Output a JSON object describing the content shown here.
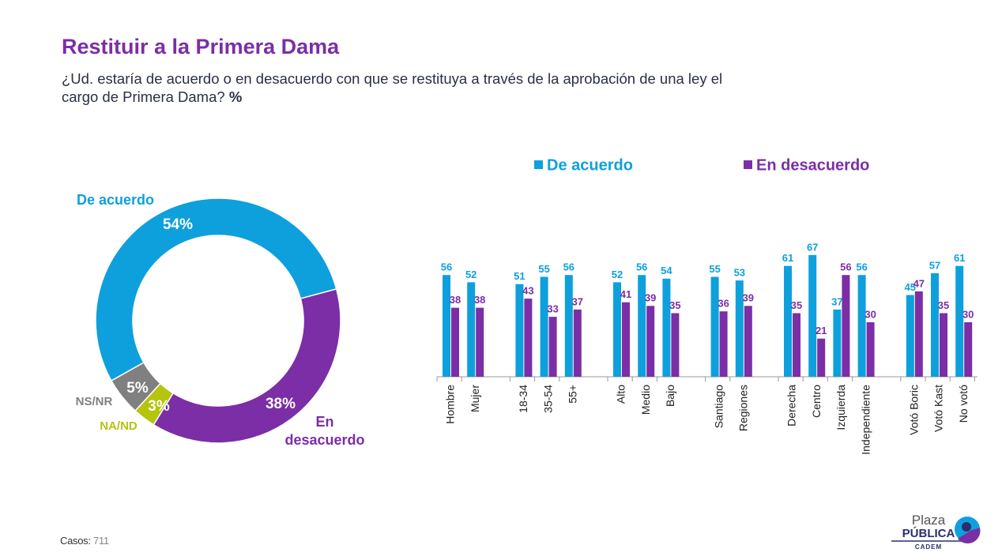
{
  "title": "Restituir a la Primera Dama",
  "subtitle": "¿Ud. estaría de acuerdo o en desacuerdo con que se restituya a través de la aprobación de una ley el cargo de Primera Dama?",
  "subtitle_unit": "%",
  "cases_label": "Casos:",
  "cases": 711,
  "logo": {
    "line1": "Plaza",
    "line2": "PÚBLICA",
    "line3": "CADEM"
  },
  "chart_data": [
    {
      "type": "donut",
      "categories": [
        "De acuerdo",
        "En desacuerdo",
        "NA/ND",
        "NS/NR"
      ],
      "values": [
        54,
        38,
        3,
        5
      ],
      "value_labels": [
        "54%",
        "38%",
        "3%",
        "5%"
      ],
      "colors": [
        "#0ea0dc",
        "#7b2ea6",
        "#b5c40d",
        "#808080"
      ]
    },
    {
      "type": "bar",
      "categories": [
        "Hombre",
        "Mujer",
        "18-34",
        "35-54",
        "55+",
        "Alto",
        "Medio",
        "Bajo",
        "Santiago",
        "Regiones",
        "Derecha",
        "Centro",
        "Izquierda",
        "Independiente",
        "Votó Boric",
        "Votó Kast",
        "No votó"
      ],
      "series": [
        {
          "name": "De acuerdo",
          "color": "#0ea0dc",
          "values": [
            56,
            52,
            51,
            55,
            56,
            52,
            56,
            54,
            55,
            53,
            61,
            67,
            37,
            56,
            45,
            57,
            61
          ]
        },
        {
          "name": "En desacuerdo",
          "color": "#7b2ea6",
          "values": [
            38,
            38,
            43,
            33,
            37,
            41,
            39,
            35,
            36,
            39,
            35,
            21,
            56,
            30,
            47,
            35,
            30
          ]
        }
      ]
    }
  ]
}
